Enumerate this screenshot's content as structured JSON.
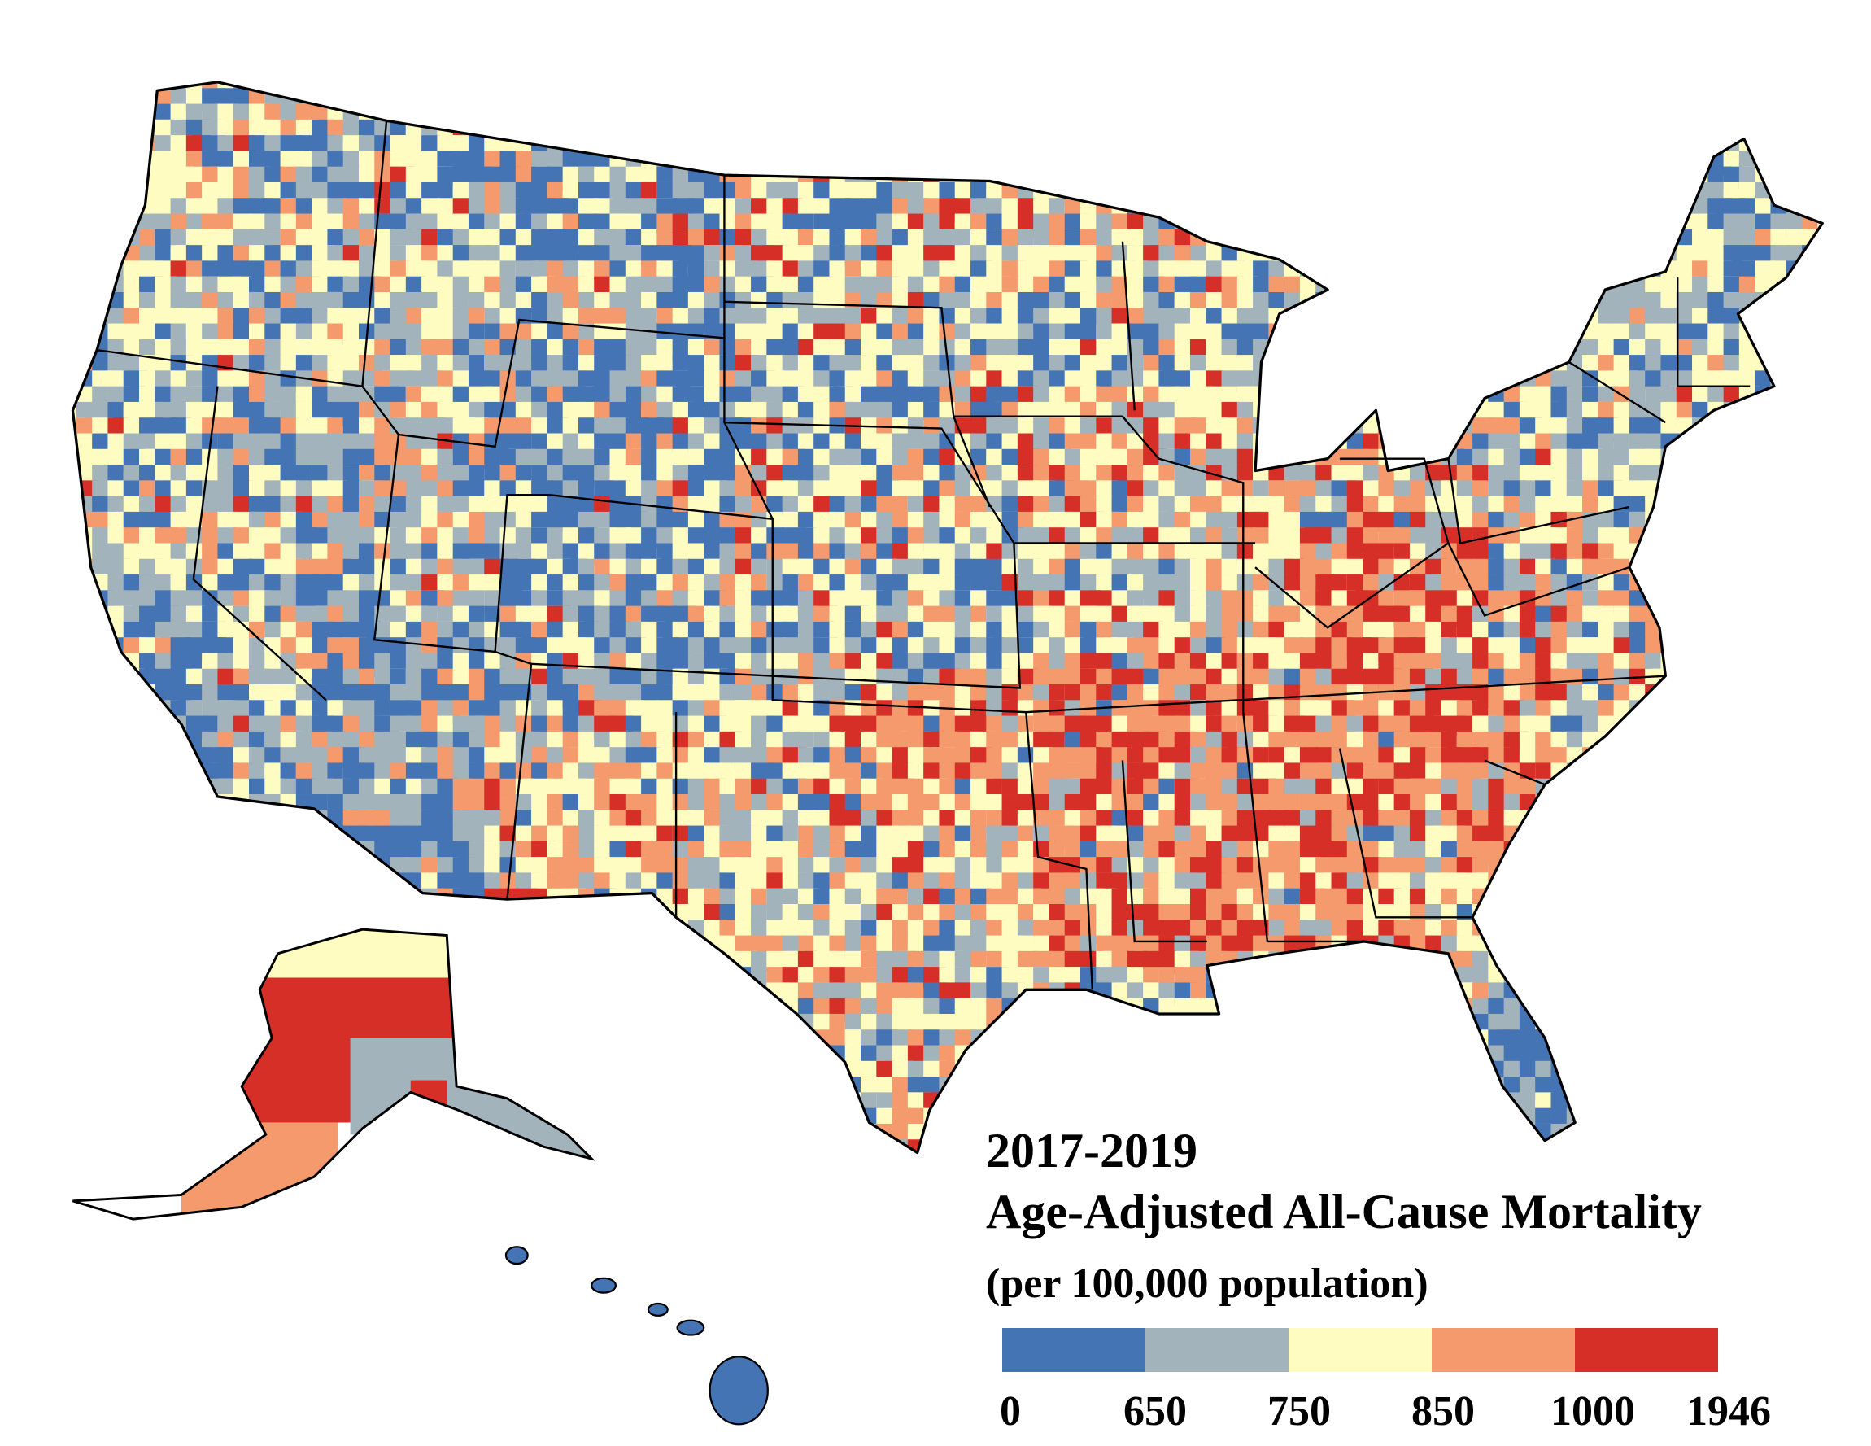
{
  "title": {
    "years": "2017-2019",
    "main": "Age-Adjusted All-Cause Mortality",
    "unit": "(per 100,000 population)"
  },
  "chart_data": {
    "type": "choropleth",
    "geography": "US counties",
    "legend": {
      "placement": "bottom-right",
      "breaks": [
        "0",
        "650",
        "750",
        "850",
        "1000",
        "1946"
      ],
      "colors": [
        "#4574b5",
        "#a3b3bc",
        "#fefcc1",
        "#f49a6c",
        "#d62f27"
      ]
    }
  }
}
